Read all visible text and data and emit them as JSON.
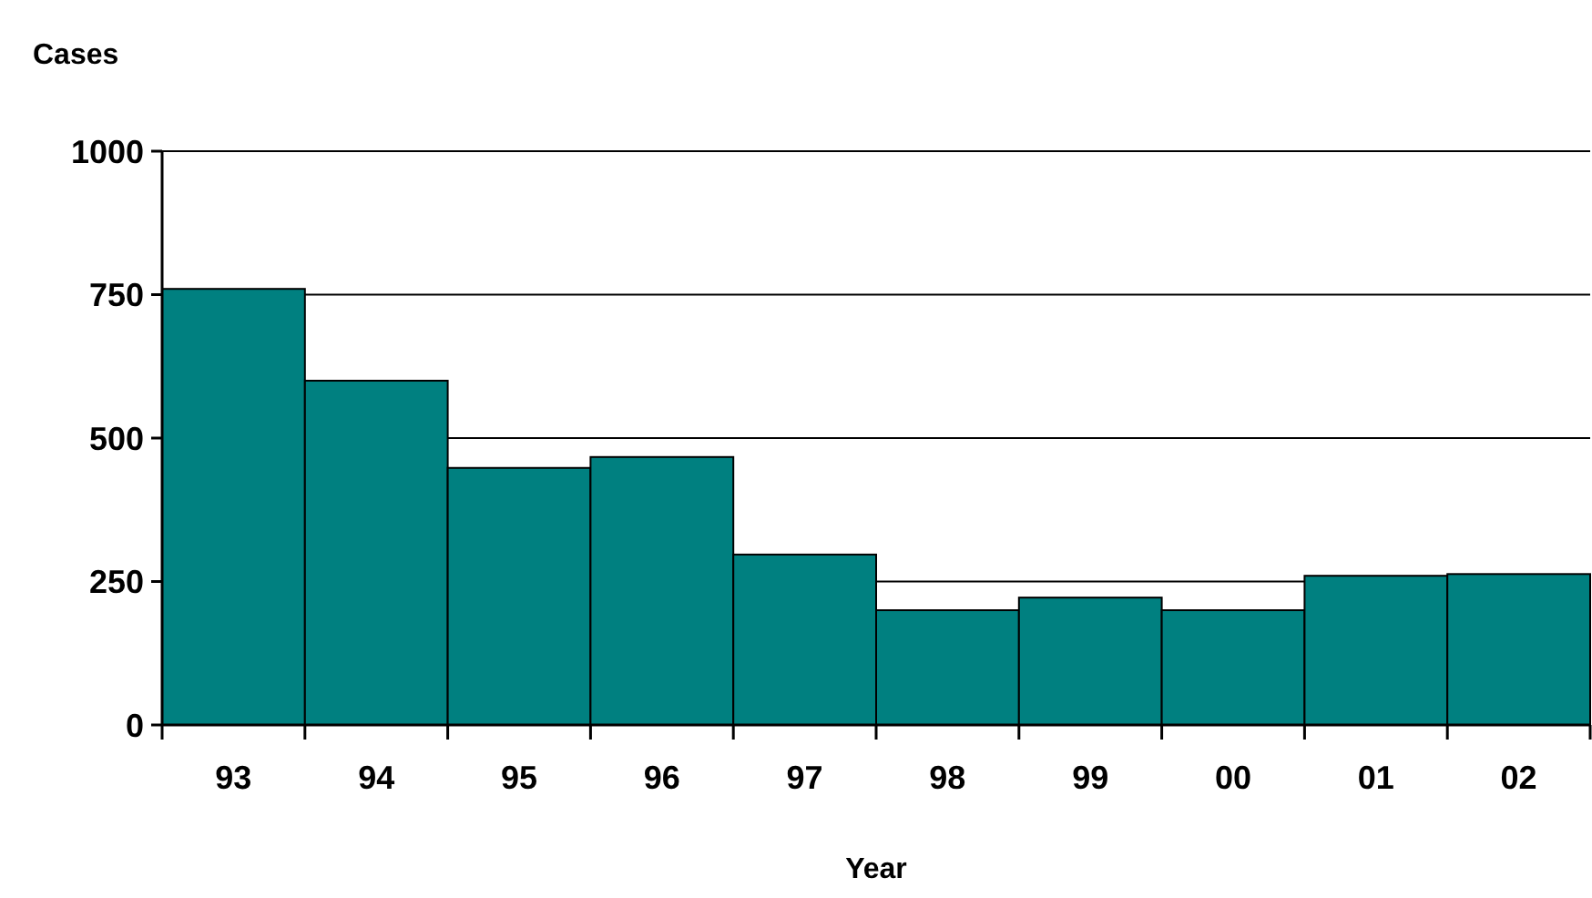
{
  "chart_data": {
    "type": "bar",
    "xlabel": "Year",
    "ylabel": "Cases",
    "categories": [
      "93",
      "94",
      "95",
      "96",
      "97",
      "98",
      "99",
      "00",
      "01",
      "02"
    ],
    "values": [
      760,
      600,
      448,
      467,
      297,
      200,
      222,
      200,
      260,
      263
    ],
    "color": "#008080",
    "ylim": [
      0,
      1000
    ],
    "yticks": [
      0,
      250,
      500,
      750,
      1000
    ],
    "grid": "y"
  }
}
